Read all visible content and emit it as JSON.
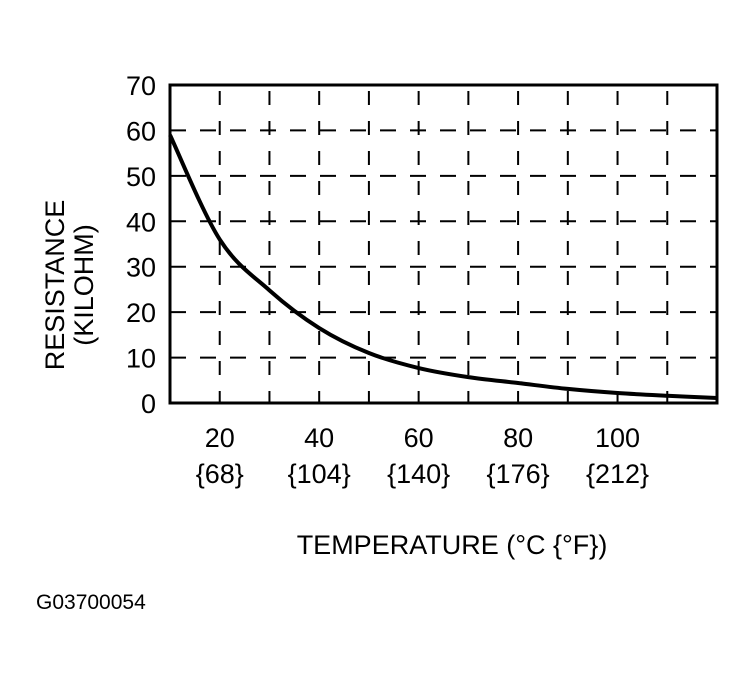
{
  "chart_data": {
    "type": "line",
    "xlabel": "TEMPERATURE (°C {°F})",
    "ylabel": [
      "RESISTANCE",
      "(KILOHM)"
    ],
    "xlim": [
      10,
      120
    ],
    "ylim": [
      0,
      70
    ],
    "grid": true,
    "x_ticks": [
      {
        "c": 20,
        "label": "20",
        "label2": "{68}"
      },
      {
        "c": 40,
        "label": "40",
        "label2": "{104}"
      },
      {
        "c": 60,
        "label": "60",
        "label2": "{140}"
      },
      {
        "c": 80,
        "label": "80",
        "label2": "{176}"
      },
      {
        "c": 100,
        "label": "100",
        "label2": "{212}"
      }
    ],
    "y_ticks": [
      "0",
      "10",
      "20",
      "30",
      "40",
      "50",
      "60",
      "70"
    ],
    "x": [
      10,
      20,
      30,
      40,
      50,
      60,
      70,
      80,
      90,
      100,
      110,
      120
    ],
    "y": [
      59,
      36,
      24.8,
      16.5,
      11,
      7.7,
      5.7,
      4.4,
      3.1,
      2.2,
      1.6,
      1.1
    ]
  },
  "figure_id": "G03700054"
}
